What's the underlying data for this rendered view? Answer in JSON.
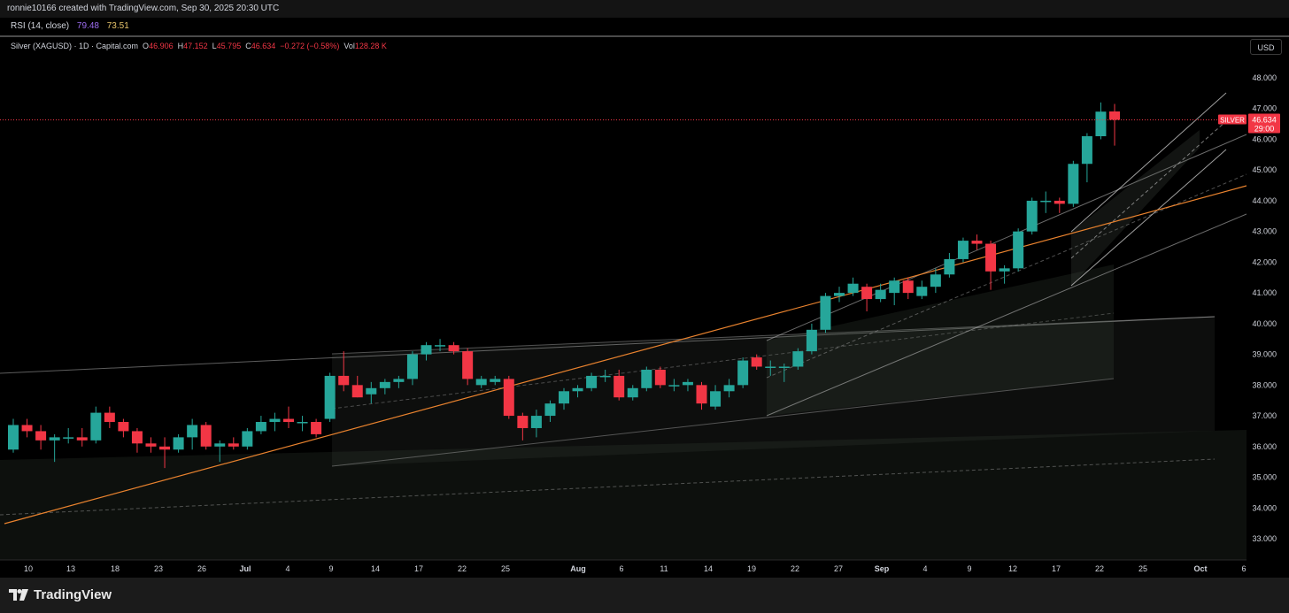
{
  "header": {
    "attribution": "ronnie10166 created with TradingView.com, Sep 30, 2025 20:30 UTC"
  },
  "rsi": {
    "label": "RSI (14, close)",
    "value1": "79.48",
    "value2": "73.51",
    "value1_color": "#9c6cf0",
    "value2_color": "#e6c36a"
  },
  "legend": {
    "symbol": "Silver (XAGUSD) · 1D · Capital.com",
    "o_label": "O",
    "o_value": "46.906",
    "h_label": "H",
    "h_value": "47.152",
    "l_label": "L",
    "l_value": "45.795",
    "c_label": "C",
    "c_value": "46.634",
    "change": "−0.272 (−0.58%)",
    "vol_label": "Vol",
    "vol_value": "128.28 K"
  },
  "currency_button": "USD",
  "price_tag": {
    "symbol": "SILVER",
    "price": "46.634",
    "countdown": "29:00"
  },
  "footer": {
    "brand": "TradingView"
  },
  "colors": {
    "up": "#26a69a",
    "down": "#f23645",
    "background": "#000000",
    "trendline": "#e8822e",
    "channel": "#8a8a8a"
  },
  "icons": [
    "tradingview-logo-icon"
  ],
  "chart_data": {
    "type": "candlestick",
    "symbol": "XAGUSD",
    "interval": "1D",
    "ylim": [
      32.3,
      48.6
    ],
    "y_ticks": [
      "48.000",
      "47.000",
      "46.000",
      "45.000",
      "44.000",
      "43.000",
      "42.000",
      "41.000",
      "40.000",
      "39.000",
      "38.000",
      "37.000",
      "36.000",
      "35.000",
      "34.000",
      "33.000"
    ],
    "x_ticks": [
      "10",
      "13",
      "18",
      "23",
      "26",
      "Jul",
      "4",
      "9",
      "14",
      "17",
      "22",
      "25",
      "Aug",
      "6",
      "11",
      "14",
      "19",
      "22",
      "27",
      "Sep",
      "4",
      "9",
      "12",
      "17",
      "22",
      "25",
      "Oct",
      "6"
    ],
    "last_price": 46.634,
    "candles": [
      {
        "d": "Jun 10",
        "o": 35.9,
        "h": 36.9,
        "l": 35.8,
        "c": 36.7
      },
      {
        "d": "Jun 11",
        "o": 36.7,
        "h": 36.9,
        "l": 36.3,
        "c": 36.5
      },
      {
        "d": "Jun 12",
        "o": 36.5,
        "h": 36.7,
        "l": 35.9,
        "c": 36.2
      },
      {
        "d": "Jun 13",
        "o": 36.2,
        "h": 36.4,
        "l": 35.5,
        "c": 36.3
      },
      {
        "d": "Jun 16",
        "o": 36.3,
        "h": 36.6,
        "l": 36.1,
        "c": 36.3
      },
      {
        "d": "Jun 17",
        "o": 36.3,
        "h": 36.6,
        "l": 36.0,
        "c": 36.2
      },
      {
        "d": "Jun 18",
        "o": 36.2,
        "h": 37.3,
        "l": 36.1,
        "c": 37.1
      },
      {
        "d": "Jun 19",
        "o": 37.1,
        "h": 37.3,
        "l": 36.6,
        "c": 36.8
      },
      {
        "d": "Jun 20",
        "o": 36.8,
        "h": 36.9,
        "l": 36.3,
        "c": 36.5
      },
      {
        "d": "Jun 23",
        "o": 36.5,
        "h": 36.6,
        "l": 35.8,
        "c": 36.1
      },
      {
        "d": "Jun 24",
        "o": 36.1,
        "h": 36.3,
        "l": 35.8,
        "c": 36.0
      },
      {
        "d": "Jun 25",
        "o": 36.0,
        "h": 36.3,
        "l": 35.3,
        "c": 35.9
      },
      {
        "d": "Jun 26",
        "o": 35.9,
        "h": 36.4,
        "l": 35.8,
        "c": 36.3
      },
      {
        "d": "Jun 27",
        "o": 36.3,
        "h": 36.9,
        "l": 35.9,
        "c": 36.7
      },
      {
        "d": "Jun 30",
        "o": 36.7,
        "h": 36.8,
        "l": 35.9,
        "c": 36.0
      },
      {
        "d": "Jul 1",
        "o": 36.0,
        "h": 36.2,
        "l": 35.5,
        "c": 36.1
      },
      {
        "d": "Jul 2",
        "o": 36.1,
        "h": 36.3,
        "l": 35.9,
        "c": 36.0
      },
      {
        "d": "Jul 3",
        "o": 36.0,
        "h": 36.6,
        "l": 35.9,
        "c": 36.5
      },
      {
        "d": "Jul 4",
        "o": 36.5,
        "h": 37.0,
        "l": 36.4,
        "c": 36.8
      },
      {
        "d": "Jul 7",
        "o": 36.8,
        "h": 37.1,
        "l": 36.5,
        "c": 36.9
      },
      {
        "d": "Jul 8",
        "o": 36.9,
        "h": 37.3,
        "l": 36.6,
        "c": 36.8
      },
      {
        "d": "Jul 9",
        "o": 36.8,
        "h": 37.0,
        "l": 36.5,
        "c": 36.8
      },
      {
        "d": "Jul 10",
        "o": 36.8,
        "h": 36.9,
        "l": 36.3,
        "c": 36.4
      },
      {
        "d": "Jul 11",
        "o": 36.9,
        "h": 38.4,
        "l": 36.8,
        "c": 38.3
      },
      {
        "d": "Jul 14",
        "o": 38.3,
        "h": 39.1,
        "l": 37.8,
        "c": 38.0
      },
      {
        "d": "Jul 15",
        "o": 38.0,
        "h": 38.3,
        "l": 37.6,
        "c": 37.6
      },
      {
        "d": "Jul 16",
        "o": 37.7,
        "h": 38.1,
        "l": 37.4,
        "c": 37.9
      },
      {
        "d": "Jul 17",
        "o": 37.9,
        "h": 38.2,
        "l": 37.7,
        "c": 38.1
      },
      {
        "d": "Jul 18",
        "o": 38.1,
        "h": 38.3,
        "l": 37.9,
        "c": 38.2
      },
      {
        "d": "Jul 21",
        "o": 38.2,
        "h": 39.1,
        "l": 38.0,
        "c": 39.0
      },
      {
        "d": "Jul 22",
        "o": 39.0,
        "h": 39.4,
        "l": 38.8,
        "c": 39.3
      },
      {
        "d": "Jul 23",
        "o": 39.3,
        "h": 39.5,
        "l": 39.1,
        "c": 39.3
      },
      {
        "d": "Jul 24",
        "o": 39.3,
        "h": 39.4,
        "l": 39.0,
        "c": 39.1
      },
      {
        "d": "Jul 25",
        "o": 39.1,
        "h": 39.2,
        "l": 38.0,
        "c": 38.2
      },
      {
        "d": "Jul 28",
        "o": 38.0,
        "h": 38.3,
        "l": 37.9,
        "c": 38.2
      },
      {
        "d": "Jul 29",
        "o": 38.1,
        "h": 38.3,
        "l": 38.0,
        "c": 38.2
      },
      {
        "d": "Jul 30",
        "o": 38.2,
        "h": 38.3,
        "l": 36.9,
        "c": 37.0
      },
      {
        "d": "Jul 31",
        "o": 37.0,
        "h": 37.1,
        "l": 36.2,
        "c": 36.6
      },
      {
        "d": "Aug 1",
        "o": 36.6,
        "h": 37.2,
        "l": 36.3,
        "c": 37.0
      },
      {
        "d": "Aug 4",
        "o": 37.0,
        "h": 37.5,
        "l": 36.8,
        "c": 37.4
      },
      {
        "d": "Aug 5",
        "o": 37.4,
        "h": 37.9,
        "l": 37.2,
        "c": 37.8
      },
      {
        "d": "Aug 6",
        "o": 37.8,
        "h": 38.0,
        "l": 37.6,
        "c": 37.9
      },
      {
        "d": "Aug 7",
        "o": 37.9,
        "h": 38.4,
        "l": 37.8,
        "c": 38.3
      },
      {
        "d": "Aug 8",
        "o": 38.3,
        "h": 38.5,
        "l": 38.1,
        "c": 38.3
      },
      {
        "d": "Aug 11",
        "o": 38.3,
        "h": 38.5,
        "l": 37.5,
        "c": 37.6
      },
      {
        "d": "Aug 12",
        "o": 37.6,
        "h": 38.0,
        "l": 37.5,
        "c": 37.9
      },
      {
        "d": "Aug 13",
        "o": 37.9,
        "h": 38.6,
        "l": 37.8,
        "c": 38.5
      },
      {
        "d": "Aug 14",
        "o": 38.5,
        "h": 38.6,
        "l": 37.9,
        "c": 38.0
      },
      {
        "d": "Aug 15",
        "o": 38.0,
        "h": 38.2,
        "l": 37.8,
        "c": 38.0
      },
      {
        "d": "Aug 18",
        "o": 38.0,
        "h": 38.2,
        "l": 37.8,
        "c": 38.1
      },
      {
        "d": "Aug 19",
        "o": 38.0,
        "h": 38.1,
        "l": 37.2,
        "c": 37.4
      },
      {
        "d": "Aug 20",
        "o": 37.3,
        "h": 38.0,
        "l": 37.2,
        "c": 37.8
      },
      {
        "d": "Aug 21",
        "o": 37.8,
        "h": 38.2,
        "l": 37.6,
        "c": 38.0
      },
      {
        "d": "Aug 22",
        "o": 38.0,
        "h": 38.9,
        "l": 37.9,
        "c": 38.8
      },
      {
        "d": "Aug 25",
        "o": 38.9,
        "h": 39.0,
        "l": 38.5,
        "c": 38.6
      },
      {
        "d": "Aug 26",
        "o": 38.6,
        "h": 38.8,
        "l": 38.3,
        "c": 38.6
      },
      {
        "d": "Aug 27",
        "o": 38.6,
        "h": 38.7,
        "l": 38.1,
        "c": 38.6
      },
      {
        "d": "Aug 28",
        "o": 38.6,
        "h": 39.2,
        "l": 38.5,
        "c": 39.1
      },
      {
        "d": "Aug 29",
        "o": 39.1,
        "h": 40.0,
        "l": 39.0,
        "c": 39.8
      },
      {
        "d": "Sep 1",
        "o": 39.8,
        "h": 41.0,
        "l": 39.7,
        "c": 40.9
      },
      {
        "d": "Sep 2",
        "o": 40.9,
        "h": 41.2,
        "l": 40.7,
        "c": 41.0
      },
      {
        "d": "Sep 3",
        "o": 41.0,
        "h": 41.5,
        "l": 40.9,
        "c": 41.3
      },
      {
        "d": "Sep 4",
        "o": 41.2,
        "h": 41.3,
        "l": 40.4,
        "c": 40.8
      },
      {
        "d": "Sep 5",
        "o": 40.8,
        "h": 41.3,
        "l": 40.7,
        "c": 41.1
      },
      {
        "d": "Sep 8",
        "o": 41.0,
        "h": 41.5,
        "l": 40.6,
        "c": 41.4
      },
      {
        "d": "Sep 9",
        "o": 41.4,
        "h": 41.5,
        "l": 40.8,
        "c": 41.0
      },
      {
        "d": "Sep 10",
        "o": 40.9,
        "h": 41.4,
        "l": 40.8,
        "c": 41.2
      },
      {
        "d": "Sep 11",
        "o": 41.2,
        "h": 41.8,
        "l": 41.0,
        "c": 41.6
      },
      {
        "d": "Sep 12",
        "o": 41.6,
        "h": 42.3,
        "l": 41.5,
        "c": 42.1
      },
      {
        "d": "Sep 15",
        "o": 42.1,
        "h": 42.8,
        "l": 42.0,
        "c": 42.7
      },
      {
        "d": "Sep 16",
        "o": 42.7,
        "h": 42.9,
        "l": 42.4,
        "c": 42.6
      },
      {
        "d": "Sep 17",
        "o": 42.6,
        "h": 42.7,
        "l": 41.1,
        "c": 41.7
      },
      {
        "d": "Sep 18",
        "o": 41.7,
        "h": 41.9,
        "l": 41.3,
        "c": 41.8
      },
      {
        "d": "Sep 19",
        "o": 41.8,
        "h": 43.1,
        "l": 41.7,
        "c": 43.0
      },
      {
        "d": "Sep 22",
        "o": 43.0,
        "h": 44.1,
        "l": 42.9,
        "c": 44.0
      },
      {
        "d": "Sep 23",
        "o": 44.0,
        "h": 44.3,
        "l": 43.6,
        "c": 44.0
      },
      {
        "d": "Sep 24",
        "o": 44.0,
        "h": 44.1,
        "l": 43.6,
        "c": 43.9
      },
      {
        "d": "Sep 25",
        "o": 43.9,
        "h": 45.3,
        "l": 43.8,
        "c": 45.2
      },
      {
        "d": "Sep 26",
        "o": 45.2,
        "h": 46.2,
        "l": 44.6,
        "c": 46.1
      },
      {
        "d": "Sep 29",
        "o": 46.1,
        "h": 47.2,
        "l": 46.0,
        "c": 46.9
      },
      {
        "d": "Sep 30",
        "o": 46.906,
        "h": 47.152,
        "l": 45.795,
        "c": 46.634
      }
    ]
  }
}
